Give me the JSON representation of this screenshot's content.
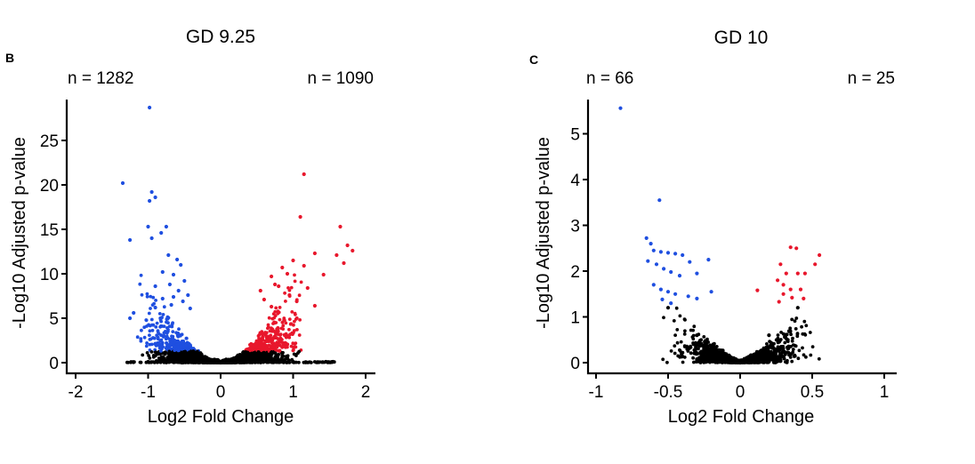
{
  "colors": {
    "down": "#1f4fe0",
    "up": "#e8172c",
    "ns": "#000000"
  },
  "panels": [
    {
      "letter": "B",
      "title": "GD 9.25",
      "n_down": "n = 1282",
      "n_up": "n = 1090",
      "xlabel": "Log2 Fold Change",
      "ylabel": "-Log10 Adjusted p-value",
      "xticks": [
        "-2",
        "-1",
        "0",
        "1",
        "2"
      ],
      "yticks": [
        "0",
        "5",
        "10",
        "15",
        "20",
        "25"
      ]
    },
    {
      "letter": "C",
      "title": "GD 10",
      "n_down": "n = 66",
      "n_up": "n = 25",
      "xlabel": "Log2 Fold Change",
      "ylabel": "-Log10 Adjusted p-value",
      "xticks": [
        "-1",
        "-0.5",
        "0",
        "0.5",
        "1"
      ],
      "yticks": [
        "0",
        "1",
        "2",
        "3",
        "4",
        "5"
      ]
    }
  ],
  "chart_data": [
    {
      "type": "scatter",
      "title": "GD 9.25",
      "xlabel": "Log2 Fold Change",
      "ylabel": "-Log10 Adjusted p-value",
      "xlim": [
        -2.1,
        2.1
      ],
      "ylim": [
        0,
        29
      ],
      "xticks": [
        -2,
        -1,
        0,
        1,
        2
      ],
      "yticks": [
        0,
        5,
        10,
        15,
        20,
        25
      ],
      "annotations": [
        "n = 1282",
        "n = 1090"
      ],
      "series": [
        {
          "color": "#1f4fe0",
          "points": [
            [
              -0.98,
              28.7
            ],
            [
              -1.35,
              20.2
            ],
            [
              -0.95,
              19.2
            ],
            [
              -0.98,
              18.2
            ],
            [
              -0.9,
              18.6
            ],
            [
              -0.75,
              15.3
            ],
            [
              -1.0,
              15.3
            ],
            [
              -0.82,
              14.6
            ],
            [
              -1.25,
              13.8
            ],
            [
              -0.95,
              14.0
            ],
            [
              -0.72,
              12.1
            ],
            [
              -0.6,
              11.6
            ],
            [
              -0.55,
              11.0
            ],
            [
              -0.8,
              10.2
            ],
            [
              -0.65,
              9.9
            ],
            [
              -0.5,
              9.2
            ],
            [
              -0.7,
              8.8
            ],
            [
              -0.9,
              8.6
            ],
            [
              -0.58,
              8.1
            ],
            [
              -0.45,
              7.6
            ],
            [
              -0.65,
              7.4
            ],
            [
              -0.8,
              7.2
            ],
            [
              -0.52,
              6.9
            ],
            [
              -0.68,
              6.5
            ],
            [
              -1.2,
              5.6
            ],
            [
              -1.25,
              5.0
            ],
            [
              -0.9,
              6.2
            ],
            [
              -0.42,
              6.1
            ]
          ]
        },
        {
          "color": "#e8172c",
          "points": [
            [
              1.15,
              21.2
            ],
            [
              1.1,
              16.4
            ],
            [
              1.65,
              15.3
            ],
            [
              1.75,
              13.2
            ],
            [
              1.82,
              12.6
            ],
            [
              1.6,
              12.1
            ],
            [
              1.3,
              12.3
            ],
            [
              1.0,
              11.5
            ],
            [
              1.15,
              10.9
            ],
            [
              0.85,
              10.7
            ],
            [
              0.92,
              10.0
            ],
            [
              0.7,
              9.7
            ],
            [
              1.42,
              9.9
            ],
            [
              1.7,
              11.2
            ],
            [
              0.75,
              8.8
            ],
            [
              0.55,
              8.1
            ],
            [
              0.8,
              8.6
            ],
            [
              1.2,
              8.4
            ],
            [
              0.95,
              7.6
            ],
            [
              0.6,
              7.1
            ],
            [
              1.05,
              6.9
            ],
            [
              1.3,
              6.4
            ],
            [
              0.7,
              6.3
            ]
          ]
        },
        {
          "color": "#000000",
          "points": [
            [
              -1.0,
              0.1
            ],
            [
              -0.5,
              0.3
            ],
            [
              0.0,
              0.0
            ],
            [
              0.5,
              0.3
            ],
            [
              1.0,
              0.1
            ],
            [
              1.45,
              0.1
            ],
            [
              1.55,
              0.1
            ]
          ]
        }
      ]
    },
    {
      "type": "scatter",
      "title": "GD 10",
      "xlabel": "Log2 Fold Change",
      "ylabel": "-Log10 Adjusted p-value",
      "xlim": [
        -1.05,
        1.05
      ],
      "ylim": [
        0,
        5.8
      ],
      "xticks": [
        -1,
        -0.5,
        0,
        0.5,
        1
      ],
      "yticks": [
        0,
        1,
        2,
        3,
        4,
        5
      ],
      "annotations": [
        "n = 66",
        "n = 25"
      ],
      "series": [
        {
          "color": "#1f4fe0",
          "points": [
            [
              -0.83,
              5.56
            ],
            [
              -0.56,
              3.55
            ],
            [
              -0.65,
              2.72
            ],
            [
              -0.62,
              2.6
            ],
            [
              -0.6,
              2.45
            ],
            [
              -0.55,
              2.42
            ],
            [
              -0.5,
              2.4
            ],
            [
              -0.45,
              2.38
            ],
            [
              -0.4,
              2.35
            ],
            [
              -0.35,
              2.2
            ],
            [
              -0.22,
              2.25
            ],
            [
              -0.64,
              2.22
            ],
            [
              -0.58,
              2.15
            ],
            [
              -0.53,
              2.05
            ],
            [
              -0.48,
              1.98
            ],
            [
              -0.42,
              1.9
            ],
            [
              -0.3,
              1.95
            ],
            [
              -0.6,
              1.7
            ],
            [
              -0.55,
              1.6
            ],
            [
              -0.5,
              1.55
            ],
            [
              -0.45,
              1.5
            ],
            [
              -0.36,
              1.45
            ],
            [
              -0.3,
              1.4
            ],
            [
              -0.2,
              1.55
            ],
            [
              -0.54,
              1.38
            ],
            [
              -0.48,
              1.3
            ]
          ]
        },
        {
          "color": "#e8172c",
          "points": [
            [
              0.35,
              2.52
            ],
            [
              0.39,
              2.5
            ],
            [
              0.55,
              2.35
            ],
            [
              0.52,
              2.15
            ],
            [
              0.28,
              2.15
            ],
            [
              0.32,
              1.95
            ],
            [
              0.4,
              1.95
            ],
            [
              0.45,
              1.95
            ],
            [
              0.26,
              1.8
            ],
            [
              0.3,
              1.7
            ],
            [
              0.35,
              1.6
            ],
            [
              0.42,
              1.6
            ],
            [
              0.12,
              1.58
            ],
            [
              0.3,
              1.5
            ],
            [
              0.36,
              1.42
            ],
            [
              0.44,
              1.4
            ],
            [
              0.27,
              1.33
            ]
          ]
        },
        {
          "color": "#000000",
          "points": [
            [
              -0.5,
              1.2
            ],
            [
              -0.3,
              0.6
            ],
            [
              0.0,
              0.0
            ],
            [
              0.2,
              0.6
            ],
            [
              0.4,
              1.2
            ]
          ]
        }
      ]
    }
  ]
}
